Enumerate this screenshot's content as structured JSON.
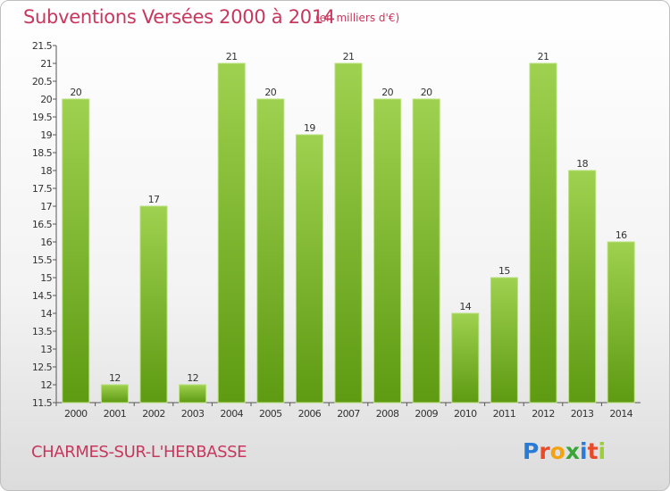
{
  "title": "Subventions Versées 2000 à 2014",
  "subtitle": "(en milliers d'€)",
  "commune": "CHARMES-SUR-L'HERBASSE",
  "logo": {
    "text": "Proxiti",
    "letter_colors": [
      "#2a7bd6",
      "#e94b2a",
      "#f2a30f",
      "#3aa63a",
      "#2a7bd6",
      "#e94b2a",
      "#9bcf3a"
    ]
  },
  "chart_data": {
    "type": "bar",
    "title": "Subventions Versées 2000 à 2014",
    "categories": [
      "2000",
      "2001",
      "2002",
      "2003",
      "2004",
      "2005",
      "2006",
      "2007",
      "2008",
      "2009",
      "2010",
      "2011",
      "2012",
      "2013",
      "2014"
    ],
    "values": [
      20,
      12,
      17,
      12,
      21,
      20,
      19,
      21,
      20,
      20,
      14,
      15,
      21,
      18,
      16
    ],
    "data_labels": [
      "20",
      "12",
      "17",
      "12",
      "21",
      "20",
      "19",
      "21",
      "20",
      "20",
      "14",
      "15",
      "21",
      "18",
      "16"
    ],
    "ylim": [
      11.5,
      21.5
    ],
    "yticks": [
      "11.5",
      "12",
      "12.5",
      "13",
      "13.5",
      "14",
      "14.5",
      "15",
      "15.5",
      "16",
      "16.5",
      "17",
      "17.5",
      "18",
      "18.5",
      "19",
      "19.5",
      "20",
      "20.5",
      "21",
      "21.5"
    ],
    "grid": false,
    "colors": {
      "bar_top": "#9ed14f",
      "bar_bottom": "#5e9a12",
      "bar_edge": "#b8e07a"
    }
  }
}
